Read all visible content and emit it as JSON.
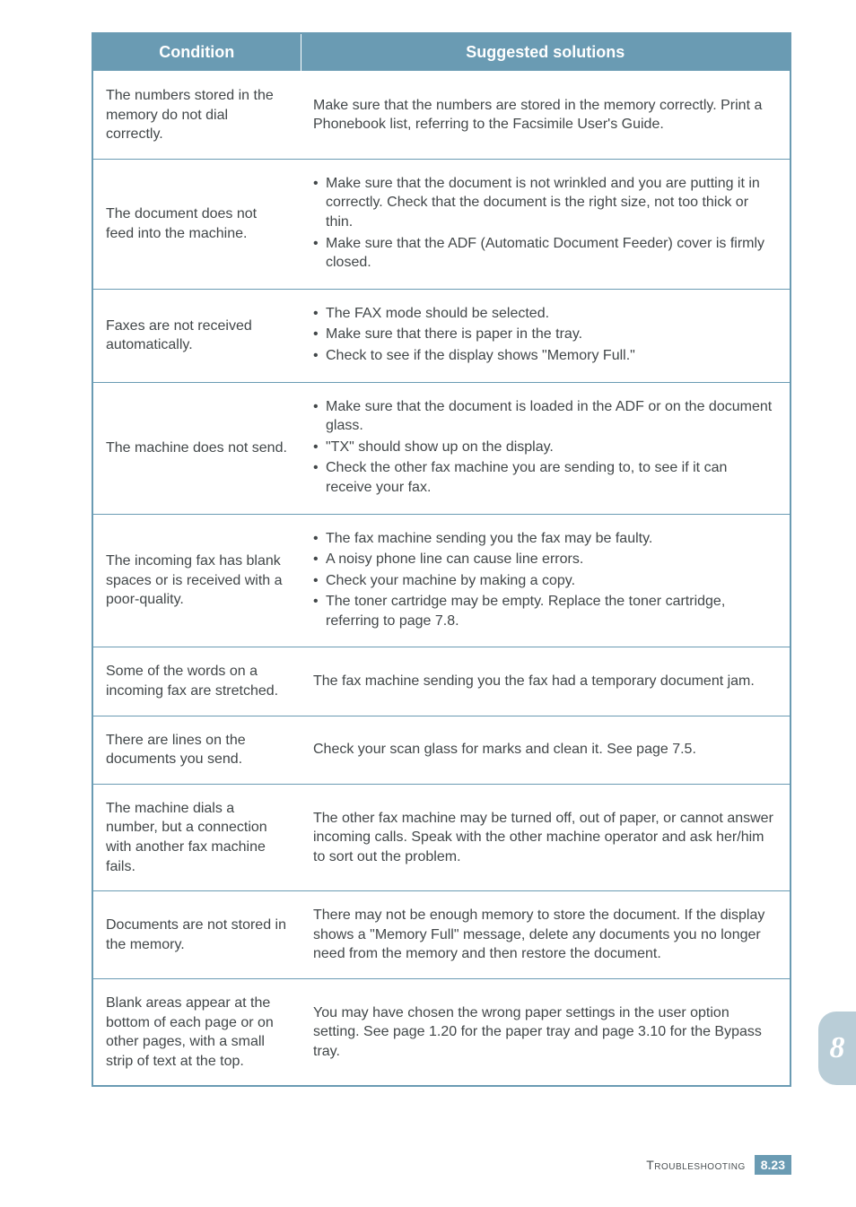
{
  "headers": {
    "condition": "Condition",
    "solutions": "Suggested solutions"
  },
  "rows": [
    {
      "condition": "The numbers stored in the memory do not dial correctly.",
      "solution_text": "Make sure that the numbers are stored in the memory correctly. Print a Phonebook list, referring to the Facsimile User's Guide."
    },
    {
      "condition": "The document does not feed into the machine.",
      "solution_bullets": [
        "Make sure that the document is not wrinkled and you are putting it in correctly. Check that the document is the right size, not too thick or thin.",
        "Make sure that the ADF (Automatic Document Feeder) cover is firmly closed."
      ]
    },
    {
      "condition": "Faxes are not received automatically.",
      "solution_bullets": [
        "The FAX mode should be selected.",
        "Make sure that there is paper in the tray.",
        "Check to see if the display shows \"Memory Full.\""
      ]
    },
    {
      "condition": "The machine does not send.",
      "solution_bullets": [
        "Make sure that the document is loaded in the ADF or on the document glass.",
        "\"TX\" should show up on the display.",
        "Check the other fax machine you are sending to, to see if it can receive your fax."
      ]
    },
    {
      "condition": "The incoming fax has blank spaces or is received with a poor-quality.",
      "solution_bullets": [
        "The fax machine sending you the fax may be faulty.",
        "A noisy phone line can cause line errors.",
        "Check your machine by making a copy.",
        "The toner cartridge may be empty. Replace the toner cartridge, referring to page 7.8."
      ]
    },
    {
      "condition": "Some of the words on a incoming fax are stretched.",
      "solution_text": "The fax machine sending you the fax had a temporary document jam."
    },
    {
      "condition": "There are lines on the documents you send.",
      "solution_text": "Check your scan glass for marks and clean it. See page 7.5."
    },
    {
      "condition": "The machine dials a number, but a connection with another fax machine fails.",
      "solution_text": "The other fax machine may be turned off, out of paper, or cannot answer incoming calls. Speak with the other machine operator and ask her/him to sort out the problem."
    },
    {
      "condition": "Documents are not stored in the memory.",
      "solution_text": "There may not be enough memory to store the document. If the display shows a \"Memory Full\" message, delete any documents you no longer need from the memory and then restore the document."
    },
    {
      "condition": "Blank areas appear at the bottom of each page or on other pages, with a small strip of text at the top.",
      "solution_text": "You may have chosen the wrong paper settings in the user option setting. See page 1.20 for the paper tray and page 3.10 for the Bypass tray."
    }
  ],
  "sidetab": "8",
  "footer": {
    "label": "Troubleshooting",
    "page": "8.23"
  }
}
